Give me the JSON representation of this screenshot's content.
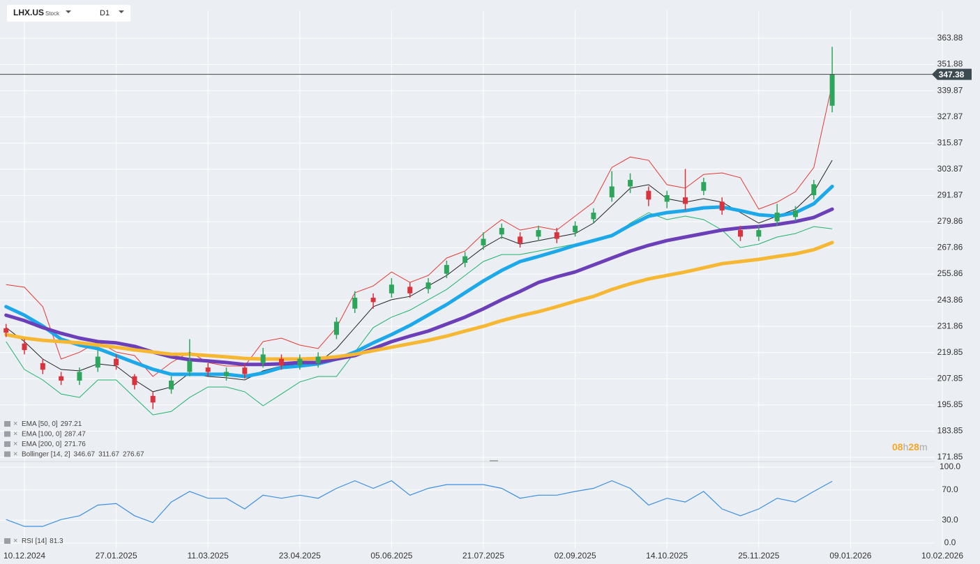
{
  "toolbar": {
    "symbol": "LHX.US",
    "kind": "Stock",
    "timeframe": "D1"
  },
  "chart_data": [
    {
      "type": "candlestick",
      "categories": [
        null,
        "10.12.2024",
        null,
        null,
        null,
        null,
        "27.01.2025",
        null,
        null,
        null,
        null,
        "11.03.2025",
        null,
        null,
        null,
        null,
        "23.04.2025",
        null,
        null,
        null,
        null,
        "05.06.2025",
        null,
        null,
        null,
        null,
        "21.07.2025",
        null,
        null,
        null,
        null,
        "02.09.2025",
        null,
        null,
        null,
        null,
        "14.10.2025",
        null,
        null,
        null,
        null,
        "25.11.2025",
        null,
        null,
        null,
        null,
        "09.01.2026",
        null,
        null,
        null,
        null,
        "10.02.2026"
      ],
      "open": [
        231,
        224,
        215,
        209,
        207,
        213,
        217,
        209,
        200,
        203,
        211,
        213,
        209,
        213,
        215,
        217,
        214,
        215,
        228,
        240,
        245,
        247,
        250,
        249,
        256,
        261,
        269,
        274,
        273,
        273,
        275,
        275,
        281,
        291,
        296,
        294,
        289,
        291,
        294,
        289,
        276,
        273,
        280,
        282,
        292,
        333,
        null,
        null,
        null,
        null,
        null,
        null
      ],
      "high": [
        233,
        226,
        217,
        211,
        213,
        221,
        219,
        210,
        202,
        209,
        226,
        215,
        213,
        215,
        222,
        219,
        219,
        220,
        236,
        248,
        247,
        254,
        252,
        254,
        262,
        266,
        275,
        279,
        275,
        278,
        277,
        280,
        286,
        303,
        302,
        296,
        294,
        304,
        300,
        291,
        278,
        278,
        288,
        287,
        299,
        360,
        null,
        null,
        null,
        null,
        null,
        null
      ],
      "low": [
        227,
        219,
        210,
        205,
        205,
        211,
        212,
        203,
        194,
        201,
        209,
        209,
        207,
        208,
        213,
        212,
        212,
        213,
        226,
        238,
        240,
        245,
        245,
        247,
        254,
        259,
        267,
        272,
        268,
        271,
        270,
        273,
        279,
        289,
        293,
        287,
        286,
        285,
        292,
        283,
        271,
        271,
        278,
        280,
        290,
        330,
        null,
        null,
        null,
        null,
        null,
        null
      ],
      "close": [
        229,
        221,
        212,
        207,
        211,
        218,
        214,
        205,
        197,
        207,
        216,
        211,
        211,
        210,
        219,
        214,
        217,
        218,
        234,
        245,
        243,
        251,
        247,
        252,
        260,
        264,
        272,
        277,
        270,
        276,
        272,
        278,
        284,
        296,
        299,
        290,
        292,
        288,
        298,
        285,
        273,
        276,
        284,
        285,
        297,
        347.38,
        null,
        null,
        null,
        null,
        null,
        null
      ],
      "up_color": "#2ea55c",
      "down_color": "#d9333d",
      "series": [
        {
          "name": "EMA [50, 0]",
          "last": 297.21,
          "color": "#1da8ea",
          "width": 5,
          "values": [
            240.9,
            237,
            232,
            226,
            223.3,
            221.7,
            218.5,
            215.3,
            212.2,
            209.9,
            209.9,
            209.9,
            209.9,
            208.9,
            210.5,
            213,
            213.7,
            214.7,
            216.9,
            220.1,
            224.3,
            228.1,
            232.3,
            237.1,
            241.9,
            247.3,
            252.7,
            257.5,
            261.6,
            263.9,
            266.4,
            269,
            271.2,
            273.5,
            278.2,
            282.4,
            284,
            284.9,
            286.2,
            286.6,
            284.9,
            283,
            282.4,
            284,
            288.1,
            296,
            null,
            null,
            null,
            null,
            null,
            null
          ]
        },
        {
          "name": "EMA [100, 0]",
          "last": 287.47,
          "color": "#6b3fb8",
          "width": 5,
          "values": [
            237,
            234.5,
            231.3,
            228.7,
            226.5,
            224.9,
            224.3,
            222.7,
            220.1,
            217.9,
            216.6,
            216,
            215.3,
            214.4,
            214.4,
            214.7,
            215.3,
            215.3,
            216.9,
            218.5,
            221.7,
            224.9,
            227.4,
            229.7,
            232.9,
            236.1,
            239.9,
            244.1,
            247.9,
            252,
            254.6,
            256.8,
            260,
            263.2,
            266.4,
            269,
            271.2,
            272.8,
            274.4,
            276,
            277,
            277.6,
            278.6,
            279.9,
            281.8,
            285.6,
            null,
            null,
            null,
            null,
            null,
            null
          ]
        },
        {
          "name": "EMA [200, 0]",
          "last": 271.76,
          "color": "#f6b733",
          "width": 5,
          "values": [
            228.1,
            226.5,
            225.5,
            224.9,
            224.3,
            223.3,
            222.3,
            221.1,
            220.1,
            219.1,
            219.1,
            218.5,
            217.9,
            217.2,
            216.9,
            216.9,
            216.9,
            217.2,
            217.9,
            219.1,
            220.7,
            222.3,
            223.9,
            225.5,
            227.4,
            229.7,
            231.9,
            234.5,
            236.7,
            238.6,
            240.9,
            243.4,
            245.6,
            248.8,
            251.4,
            253.6,
            255.2,
            256.8,
            258.7,
            260.6,
            261.6,
            262.6,
            263.9,
            265.1,
            267,
            270.3,
            null,
            null,
            null,
            null,
            null,
            null
          ]
        }
      ],
      "bollinger": {
        "name": "Bollinger [14, 2]",
        "last": [
          346.67,
          311.67,
          276.67
        ],
        "bands": [
          {
            "color": "#e53935",
            "values": [
              251,
              249.8,
              240.9,
              216.9,
              220,
              224.9,
              220.1,
              218.5,
              208.9,
              215.3,
              220.1,
              215.3,
              213.7,
              213.7,
              224.9,
              226.5,
              223.3,
              221.7,
              231.3,
              247.3,
              250.4,
              256.8,
              252,
              255.2,
              263.2,
              266.4,
              274.4,
              280.8,
              276,
              277.6,
              276,
              282.4,
              288.8,
              304.7,
              309.5,
              308,
              296.8,
              295.2,
              301.5,
              302.2,
              300,
              285.6,
              288.8,
              293.6,
              304.7,
              343,
              null,
              null,
              null,
              null,
              null,
              null
            ]
          },
          {
            "color": "#222222",
            "values": [
              231.3,
              224.9,
              216.9,
              212.1,
              211.5,
              214.7,
              213.7,
              207.3,
              201.9,
              204.1,
              210.5,
              208.9,
              208.3,
              207.3,
              211.5,
              213.7,
              214.7,
              215.3,
              221.7,
              231.3,
              240.9,
              244.1,
              245.6,
              250.4,
              255.2,
              261.6,
              268,
              272.8,
              269.6,
              271.2,
              272.8,
              274.4,
              279.2,
              287.2,
              295.2,
              296.8,
              290.4,
              288.8,
              290.4,
              288.8,
              284,
              279.2,
              282.4,
              285.6,
              293.6,
              308,
              null,
              null,
              null,
              null,
              null,
              null
            ]
          },
          {
            "color": "#1fb36c",
            "values": [
              224.9,
              212.1,
              207.3,
              200.9,
              199.3,
              207.3,
              207.3,
              199.3,
              191.3,
              192.9,
              199.3,
              204.1,
              204.1,
              201.9,
              195.5,
              200.9,
              206.4,
              208.9,
              208.9,
              220.1,
              231.3,
              236.1,
              239.3,
              244.1,
              248.8,
              255.2,
              261.6,
              264.8,
              264.8,
              266.4,
              268,
              269.6,
              271.2,
              272.8,
              279.2,
              284,
              280.8,
              282.4,
              280.8,
              276,
              268,
              269.6,
              272.8,
              274.4,
              277.6,
              276.6,
              null,
              null,
              null,
              null,
              null,
              null
            ]
          }
        ]
      },
      "current_price": 347.38,
      "ylim": [
        169.93,
        376.66
      ],
      "yticks": [
        363.88,
        351.88,
        339.87,
        327.87,
        315.87,
        303.87,
        291.87,
        279.86,
        267.86,
        255.86,
        243.86,
        231.86,
        219.85,
        207.85,
        195.85,
        183.85,
        171.85
      ],
      "grid": true,
      "countdown": [
        "08",
        "h",
        "28",
        "m"
      ]
    },
    {
      "type": "line",
      "name": "RSI [14]",
      "last": 81.3,
      "color": "#3b8fe2",
      "values": [
        31,
        22,
        22,
        31,
        36,
        50,
        52,
        36,
        27,
        54,
        68,
        59,
        59,
        45,
        63,
        59,
        63,
        59,
        72,
        82,
        72,
        82,
        63,
        72,
        77,
        77,
        77,
        72,
        59,
        63,
        63,
        68,
        72,
        82,
        72,
        50,
        59,
        54,
        68,
        45,
        36,
        45,
        59,
        54,
        68,
        81.3,
        null,
        null,
        null,
        null,
        null,
        null
      ],
      "ylim": [
        0,
        100
      ],
      "yticks": [
        {
          "value": 100,
          "label": "100.0"
        },
        {
          "value": 70,
          "label": "70.0"
        },
        {
          "value": 30,
          "label": "30.0"
        },
        {
          "value": 0,
          "label": "0.0"
        }
      ]
    }
  ]
}
